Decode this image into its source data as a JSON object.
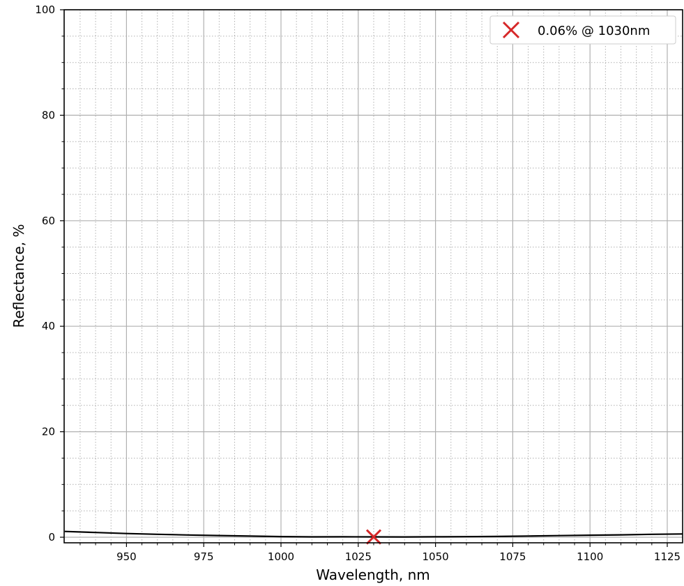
{
  "chart_data": {
    "type": "line",
    "xlabel": "Wavelength, nm",
    "ylabel": "Reflectance, %",
    "xlim": [
      930,
      1130
    ],
    "ylim": [
      -1,
      100
    ],
    "x_ticks": [
      950,
      975,
      1000,
      1025,
      1050,
      1075,
      1100,
      1125
    ],
    "y_ticks": [
      0,
      20,
      40,
      60,
      80,
      100
    ],
    "grid": {
      "major": true,
      "minor": true
    },
    "legend_position": "top-right",
    "series": [
      {
        "color": "#000000",
        "x": [
          930,
          940,
          950,
          960,
          970,
          980,
          990,
          1000,
          1010,
          1020,
          1030,
          1040,
          1050,
          1060,
          1070,
          1080,
          1090,
          1100,
          1110,
          1120,
          1130
        ],
        "y": [
          1.1,
          0.9,
          0.7,
          0.55,
          0.42,
          0.32,
          0.22,
          0.12,
          0.07,
          0.08,
          0.06,
          0.05,
          0.08,
          0.1,
          0.15,
          0.22,
          0.3,
          0.38,
          0.45,
          0.55,
          0.62
        ]
      }
    ],
    "markers": [
      {
        "label": "0.06% @ 1030nm",
        "x": 1030,
        "y": 0.06,
        "symbol": "x",
        "color": "#d62728"
      }
    ]
  }
}
